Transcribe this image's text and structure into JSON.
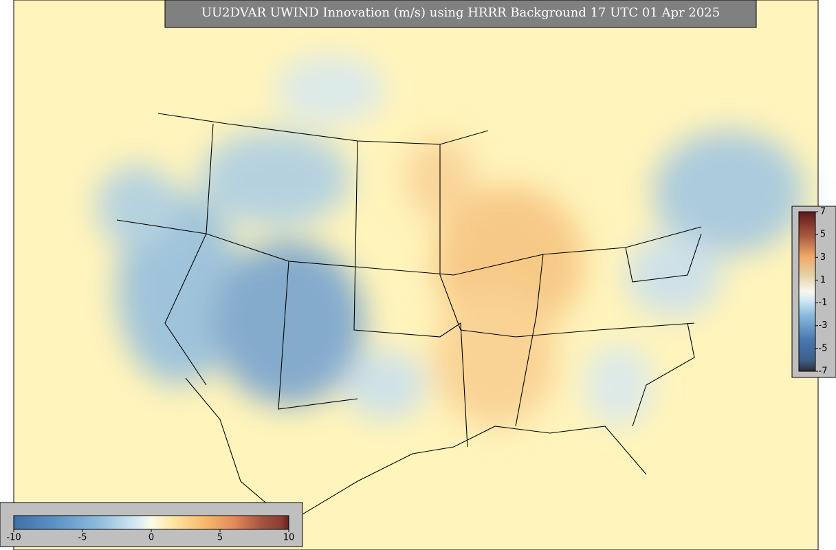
{
  "title": "UU2DVAR UWIND Innovation (m/s) using HRRR Background 17 UTC 01 Apr 2025",
  "colorbar_bottom": {
    "range": [
      -10,
      10
    ],
    "ticks": [
      -10,
      -5,
      0,
      5,
      10
    ]
  },
  "colorbar_right": {
    "range": [
      -7,
      7
    ],
    "ticks": [
      7,
      5,
      3,
      1,
      -1,
      -3,
      -5,
      -7
    ]
  }
}
